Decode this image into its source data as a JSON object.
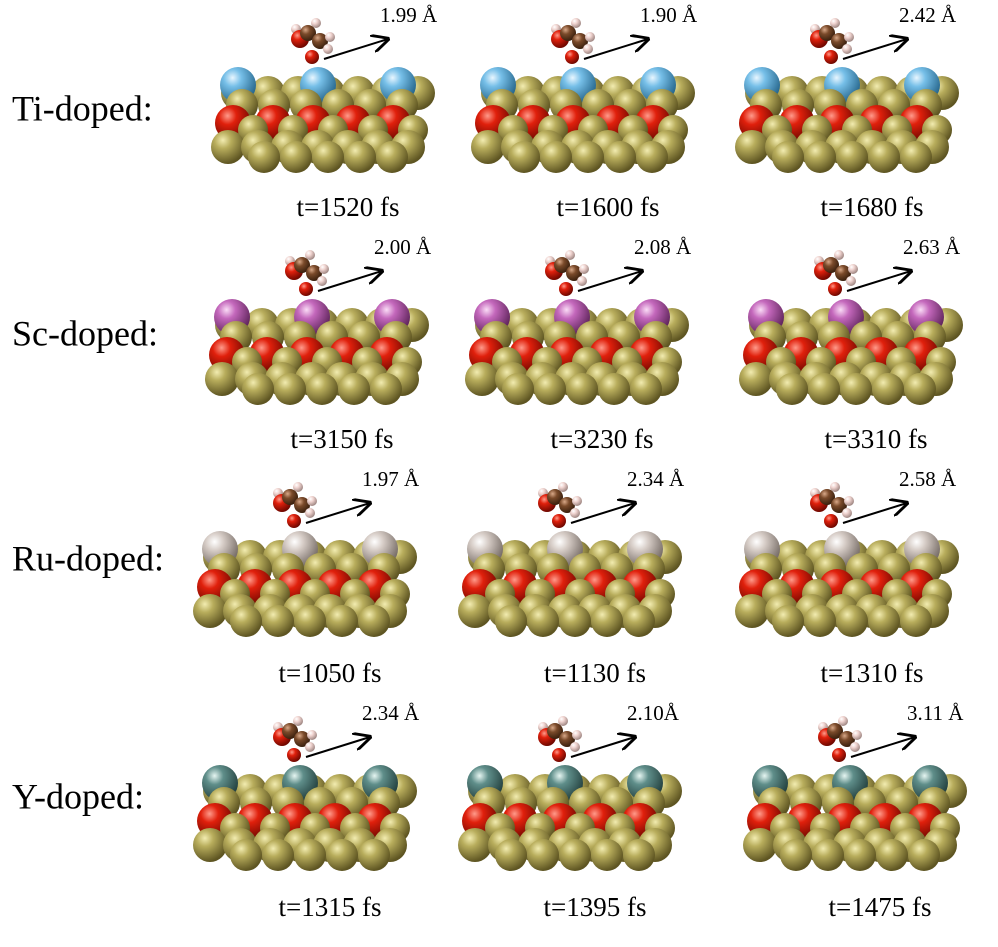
{
  "rows": [
    {
      "label": "Ti-doped:",
      "panels": [
        {
          "distance": "1.99 Å",
          "time": "t=1520 fs"
        },
        {
          "distance": "1.90 Å",
          "time": "t=1600 fs"
        },
        {
          "distance": "2.42 Å",
          "time": "t=1680 fs"
        }
      ]
    },
    {
      "label": "Sc-doped:",
      "panels": [
        {
          "distance": "2.00 Å",
          "time": "t=3150 fs"
        },
        {
          "distance": "2.08 Å",
          "time": "t=3230 fs"
        },
        {
          "distance": "2.63 Å",
          "time": "t=3310 fs"
        }
      ]
    },
    {
      "label": "Ru-doped:",
      "panels": [
        {
          "distance": "1.97 Å",
          "time": "t=1050 fs"
        },
        {
          "distance": "2.34 Å",
          "time": "t=1130 fs"
        },
        {
          "distance": "2.58 Å",
          "time": "t=1310 fs"
        }
      ]
    },
    {
      "label": "Y-doped:",
      "panels": [
        {
          "distance": "2.34 Å",
          "time": "t=1315 fs"
        },
        {
          "distance": "2.10Å",
          "time": "t=1395 fs"
        },
        {
          "distance": "3.11 Å",
          "time": "t=1475 fs"
        }
      ]
    }
  ]
}
